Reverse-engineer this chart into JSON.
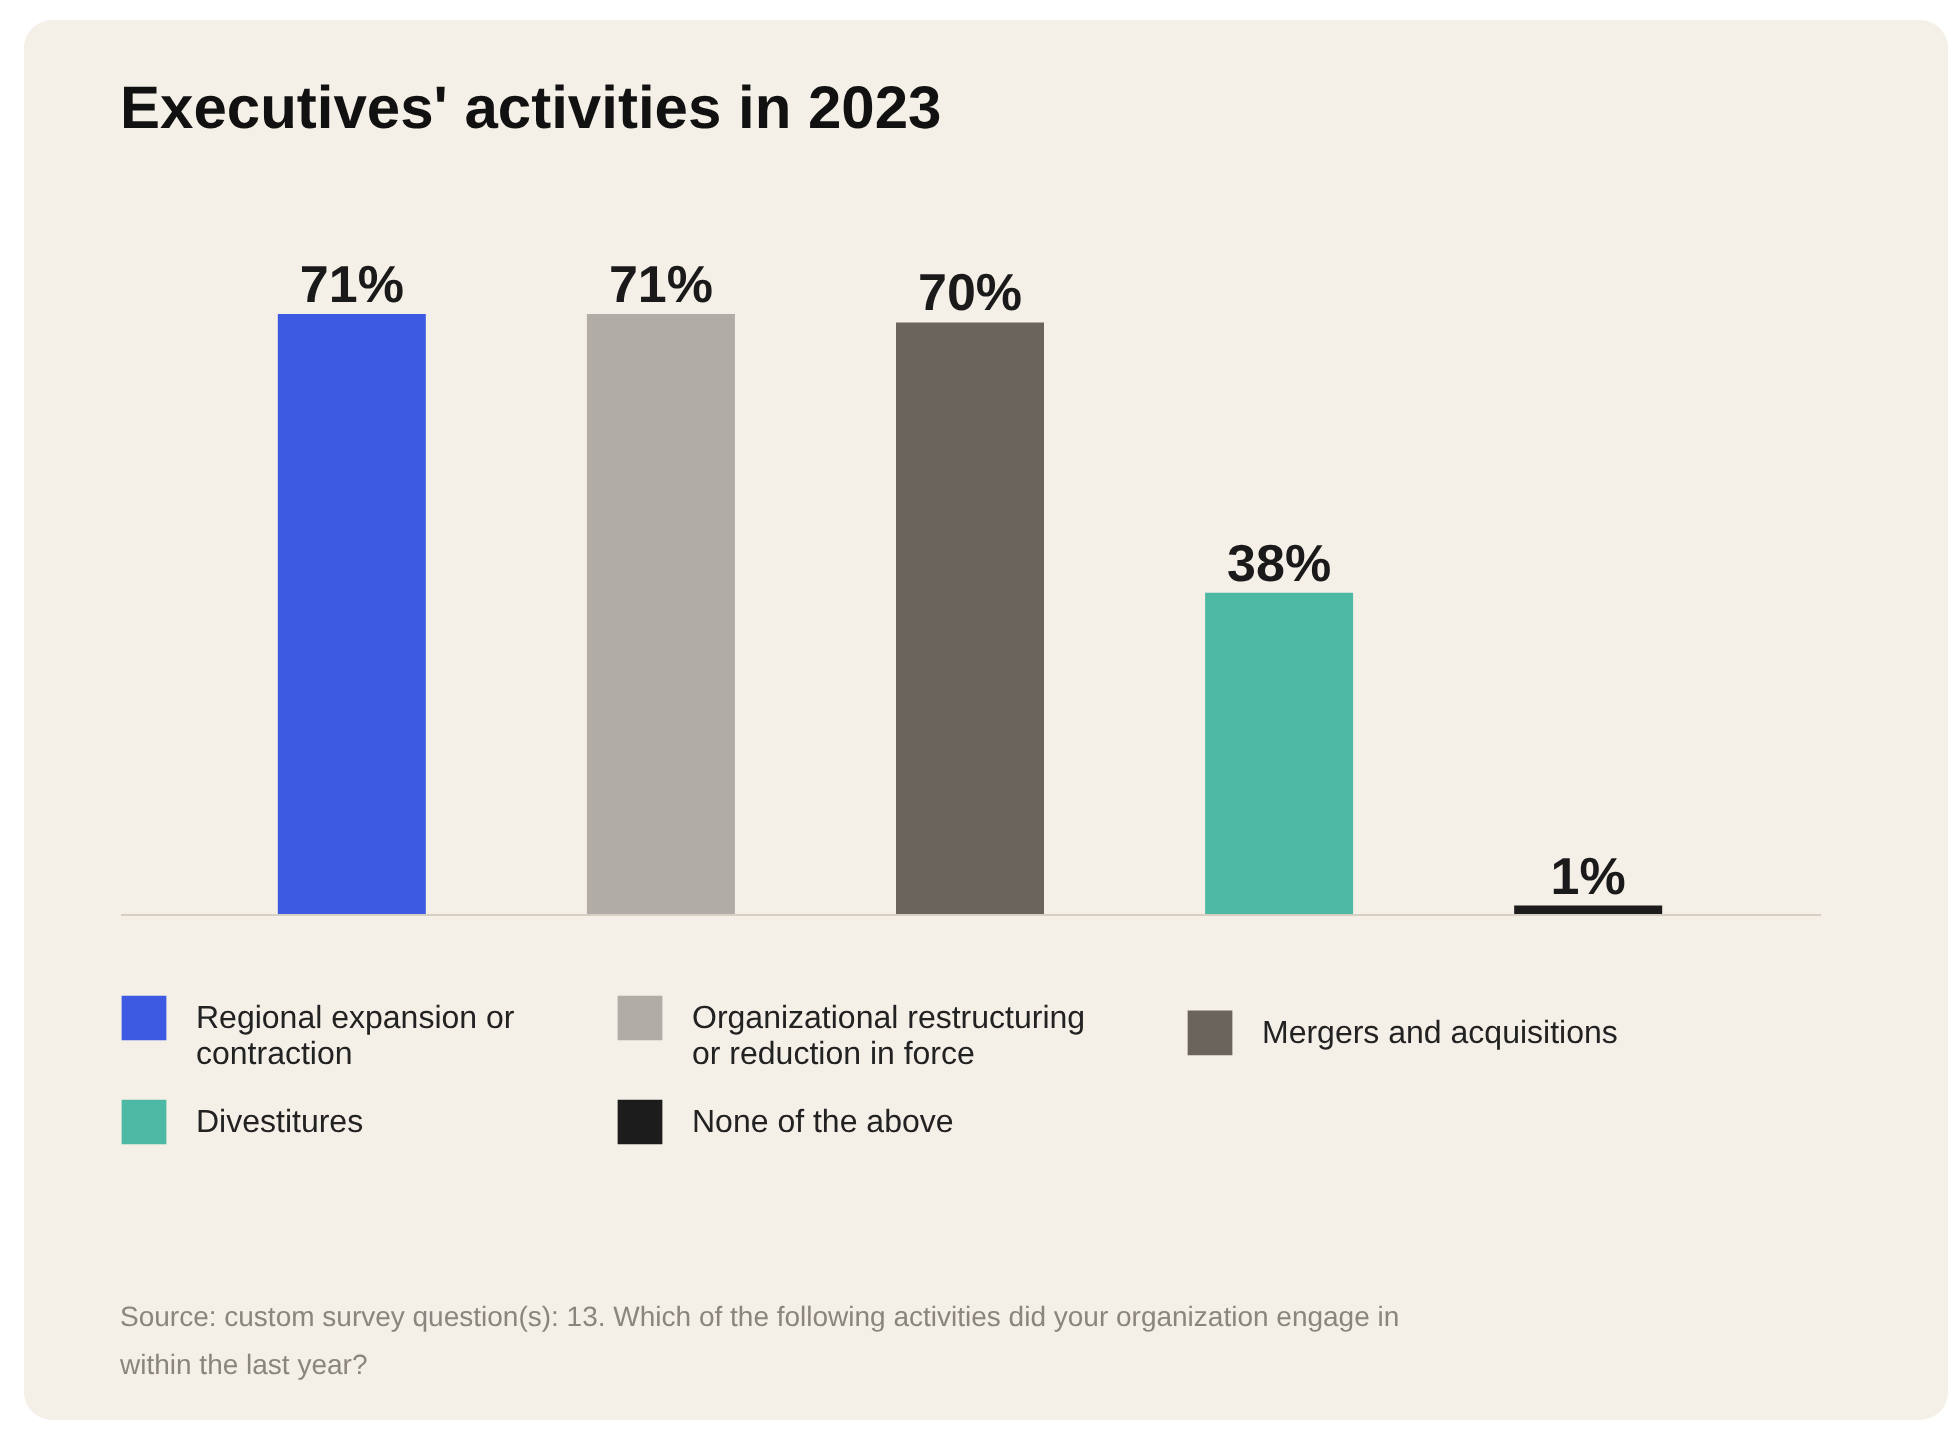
{
  "chart_data": {
    "type": "bar",
    "title": "Executives' activities in 2023",
    "categories": [
      null,
      null,
      null,
      null,
      null
    ],
    "series": [
      {
        "name": "Regional expansion or contraction",
        "color": "#3d5ae3",
        "values": [
          71,
          null,
          null,
          null,
          null
        ],
        "value_labels": [
          "71%",
          null,
          null,
          null,
          null
        ]
      },
      {
        "name": "Organizational restructuring or reduction in force",
        "color": "#b1aca5",
        "values": [
          null,
          71,
          null,
          null,
          null
        ],
        "value_labels": [
          null,
          "71%",
          null,
          null,
          null
        ]
      },
      {
        "name": "Mergers and acquisitions",
        "color": "#6a645d",
        "values": [
          null,
          null,
          70,
          null,
          null
        ],
        "value_labels": [
          null,
          null,
          "70%",
          null,
          null
        ]
      },
      {
        "name": "Divestitures",
        "color": "#4db9a5",
        "values": [
          null,
          null,
          null,
          38,
          null
        ],
        "value_labels": [
          null,
          null,
          null,
          "38%",
          null
        ]
      },
      {
        "name": "None of the above",
        "color": "#1c1c1c",
        "values": [
          null,
          null,
          null,
          null,
          1
        ],
        "value_labels": [
          null,
          null,
          null,
          null,
          "1%"
        ]
      }
    ],
    "stacked": true,
    "legend": "bottom",
    "tick_labels": false,
    "annotations": [
      "Source: custom survey question(s): 13. Which of the following activities did your organization engage in within the last year?"
    ]
  }
}
